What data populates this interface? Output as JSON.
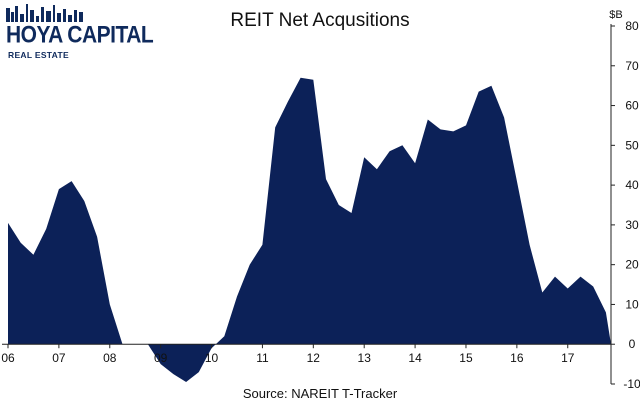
{
  "logo": {
    "name": "HOYA CAPITAL",
    "sub": "REAL ESTATE"
  },
  "colors": {
    "area": "#0c2158",
    "axis": "#222222",
    "logo": "#0f2a5c"
  },
  "source": "Source: NAREIT T-Tracker",
  "chart_data": {
    "type": "area",
    "title": "REIT Net Acqusitions",
    "y_unit_label": "$B",
    "ylim": [
      -10,
      80
    ],
    "y_ticks": [
      "-10",
      "0",
      "10",
      "20",
      "30",
      "40",
      "50",
      "60",
      "70",
      "80"
    ],
    "y_tick_values": [
      -10,
      0,
      10,
      20,
      30,
      40,
      50,
      60,
      70,
      80
    ],
    "y_axis_side": "right",
    "x_tick_labels": [
      "06",
      "07",
      "08",
      "09",
      "10",
      "11",
      "12",
      "13",
      "14",
      "15",
      "16",
      "17"
    ],
    "xlim": [
      2006.0,
      2017.85
    ],
    "grid": false,
    "series": [
      {
        "x": [
          2006.0,
          2006.25,
          2006.5,
          2006.75,
          2007.0,
          2007.25,
          2007.5,
          2007.75,
          2008.0,
          2008.25,
          2008.5,
          2008.75,
          2009.0,
          2009.25,
          2009.5,
          2009.75,
          2010.0,
          2010.25,
          2010.5,
          2010.75,
          2011.0,
          2011.25,
          2011.5,
          2011.75,
          2012.0,
          2012.25,
          2012.5,
          2012.75,
          2013.0,
          2013.25,
          2013.5,
          2013.75,
          2014.0,
          2014.25,
          2014.5,
          2014.75,
          2015.0,
          2015.25,
          2015.5,
          2015.75,
          2016.0,
          2016.25,
          2016.5,
          2016.75,
          2017.0,
          2017.25,
          2017.5,
          2017.75,
          2017.85
        ],
        "values": [
          30.5,
          25.5,
          22.5,
          29,
          39,
          41,
          36,
          27,
          10,
          0,
          0,
          0,
          -5,
          -7.5,
          -9.5,
          -7,
          -1,
          2,
          12,
          20,
          25,
          54.5,
          61,
          67,
          66.5,
          41.5,
          35,
          33,
          47,
          44,
          48.5,
          50,
          45.5,
          56.5,
          54,
          53.5,
          55,
          63.5,
          65,
          57,
          41,
          25,
          13,
          17,
          14,
          17,
          14.5,
          8,
          0
        ]
      }
    ]
  }
}
